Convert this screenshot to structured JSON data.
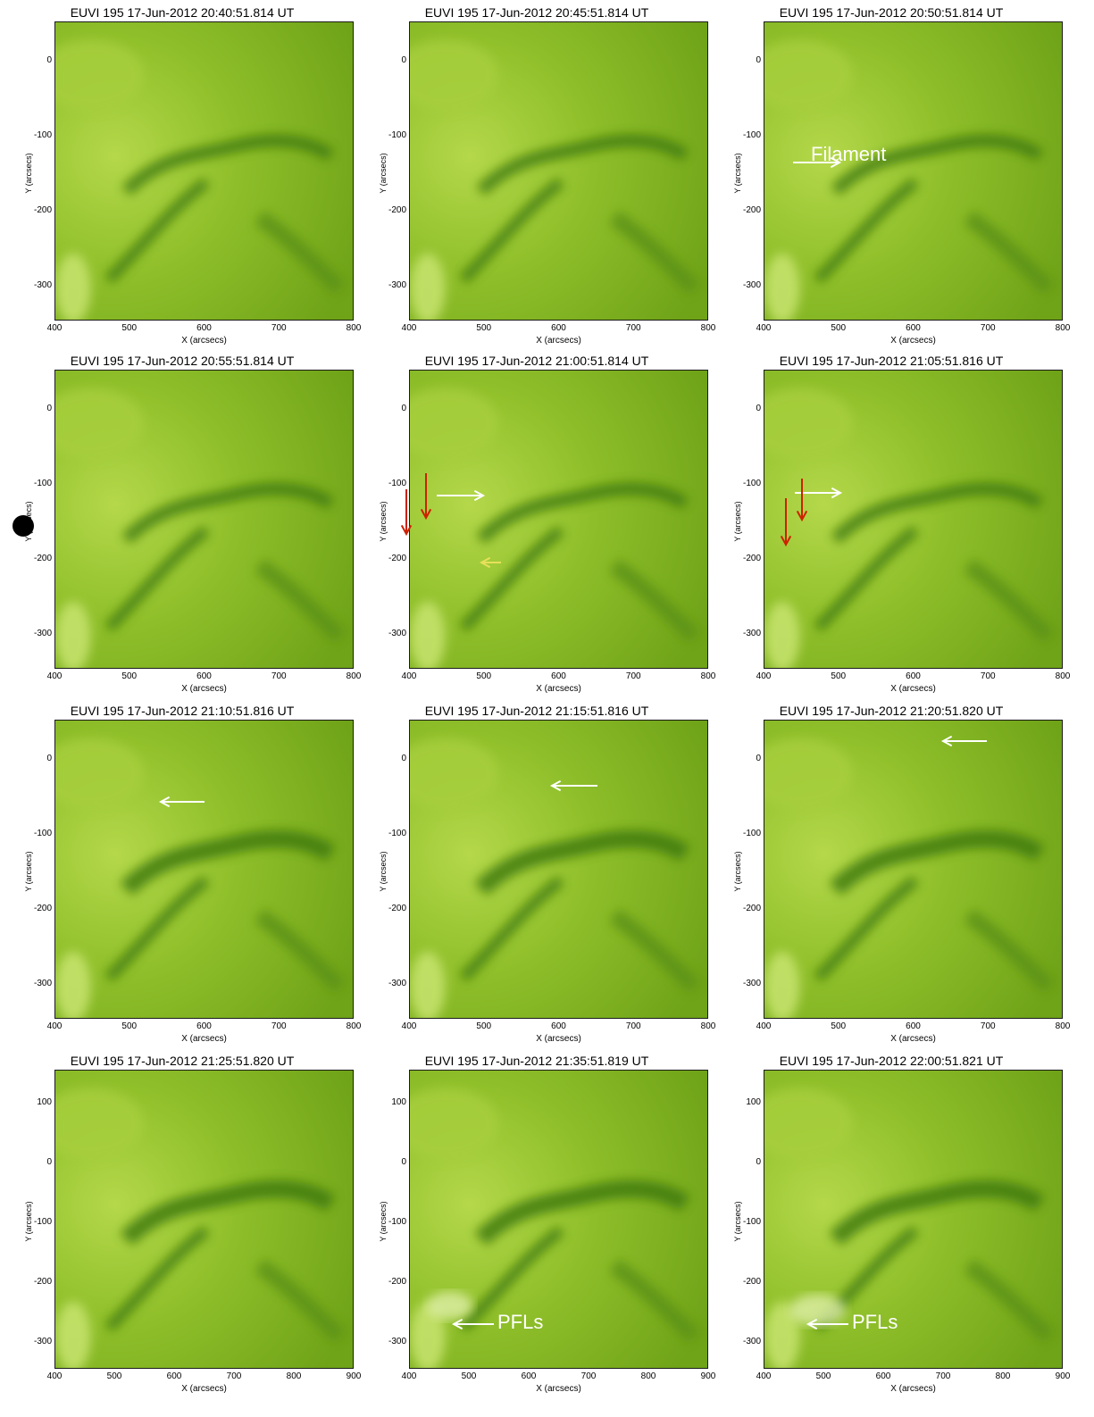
{
  "panels": [
    {
      "title": "EUVI 195 17-Jun-2012 20:40:51.814 UT",
      "xlabel": "X (arcsecs)",
      "ylabel": "Y (arcsecs)",
      "xticks": [
        "400",
        "500",
        "600",
        "700",
        "800"
      ],
      "yticks": [
        "0",
        "-100",
        "-200",
        "-300"
      ]
    },
    {
      "title": "EUVI 195 17-Jun-2012 20:45:51.814 UT",
      "xlabel": "X (arcsecs)",
      "ylabel": "Y (arcsecs)",
      "xticks": [
        "400",
        "500",
        "600",
        "700",
        "800"
      ],
      "yticks": [
        "0",
        "-100",
        "-200",
        "-300"
      ]
    },
    {
      "title": "EUVI 195 17-Jun-2012 20:50:51.814 UT",
      "xlabel": "X (arcsecs)",
      "ylabel": "Y (arcsecs)",
      "xticks": [
        "400",
        "500",
        "600",
        "700",
        "800"
      ],
      "yticks": [
        "0",
        "-100",
        "-200",
        "-300"
      ],
      "annotation": "Filament"
    },
    {
      "title": "EUVI 195 17-Jun-2012 20:55:51.814 UT",
      "xlabel": "X (arcsecs)",
      "ylabel": "Y (arcsecs)",
      "xticks": [
        "400",
        "500",
        "600",
        "700",
        "800"
      ],
      "yticks": [
        "0",
        "-100",
        "-200",
        "-300"
      ]
    },
    {
      "title": "EUVI 195 17-Jun-2012 21:00:51.814 UT",
      "xlabel": "X (arcsecs)",
      "ylabel": "Y (arcsecs)",
      "xticks": [
        "400",
        "500",
        "600",
        "700",
        "800"
      ],
      "yticks": [
        "0",
        "-100",
        "-200",
        "-300"
      ]
    },
    {
      "title": "EUVI 195 17-Jun-2012 21:05:51.816 UT",
      "xlabel": "X (arcsecs)",
      "ylabel": "Y (arcsecs)",
      "xticks": [
        "400",
        "500",
        "600",
        "700",
        "800"
      ],
      "yticks": [
        "0",
        "-100",
        "-200",
        "-300"
      ]
    },
    {
      "title": "EUVI 195 17-Jun-2012 21:10:51.816 UT",
      "xlabel": "X (arcsecs)",
      "ylabel": "Y (arcsecs)",
      "xticks": [
        "400",
        "500",
        "600",
        "700",
        "800"
      ],
      "yticks": [
        "0",
        "-100",
        "-200",
        "-300"
      ]
    },
    {
      "title": "EUVI 195 17-Jun-2012 21:15:51.816 UT",
      "xlabel": "X (arcsecs)",
      "ylabel": "Y (arcsecs)",
      "xticks": [
        "400",
        "500",
        "600",
        "700",
        "800"
      ],
      "yticks": [
        "0",
        "-100",
        "-200",
        "-300"
      ]
    },
    {
      "title": "EUVI 195 17-Jun-2012 21:20:51.820 UT",
      "xlabel": "X (arcsecs)",
      "ylabel": "Y (arcsecs)",
      "xticks": [
        "400",
        "500",
        "600",
        "700",
        "800"
      ],
      "yticks": [
        "0",
        "-100",
        "-200",
        "-300"
      ]
    },
    {
      "title": "EUVI 195 17-Jun-2012 21:25:51.820 UT",
      "xlabel": "X (arcsecs)",
      "ylabel": "Y (arcsecs)",
      "xticks": [
        "400",
        "500",
        "600",
        "700",
        "800",
        "900"
      ],
      "yticks": [
        "100",
        "0",
        "-100",
        "-200",
        "-300"
      ]
    },
    {
      "title": "EUVI 195 17-Jun-2012 21:35:51.819 UT",
      "xlabel": "X (arcsecs)",
      "ylabel": "Y (arcsecs)",
      "xticks": [
        "400",
        "500",
        "600",
        "700",
        "800",
        "900"
      ],
      "yticks": [
        "100",
        "0",
        "-100",
        "-200",
        "-300"
      ],
      "annotation": "PFLs"
    },
    {
      "title": "EUVI 195 17-Jun-2012 22:00:51.821 UT",
      "xlabel": "X (arcsecs)",
      "ylabel": "Y (arcsecs)",
      "xticks": [
        "400",
        "500",
        "600",
        "700",
        "800",
        "900"
      ],
      "yticks": [
        "100",
        "0",
        "-100",
        "-200",
        "-300"
      ],
      "annotation": "PFLs"
    }
  ],
  "colors": {
    "bg_light": "#8fbf2a",
    "bg_mid": "#6fa318",
    "filament_dark": "#3f7a0c",
    "arrow_white": "#ffffff",
    "arrow_red": "#cc2200",
    "arrow_yellow": "#e8e05a"
  }
}
